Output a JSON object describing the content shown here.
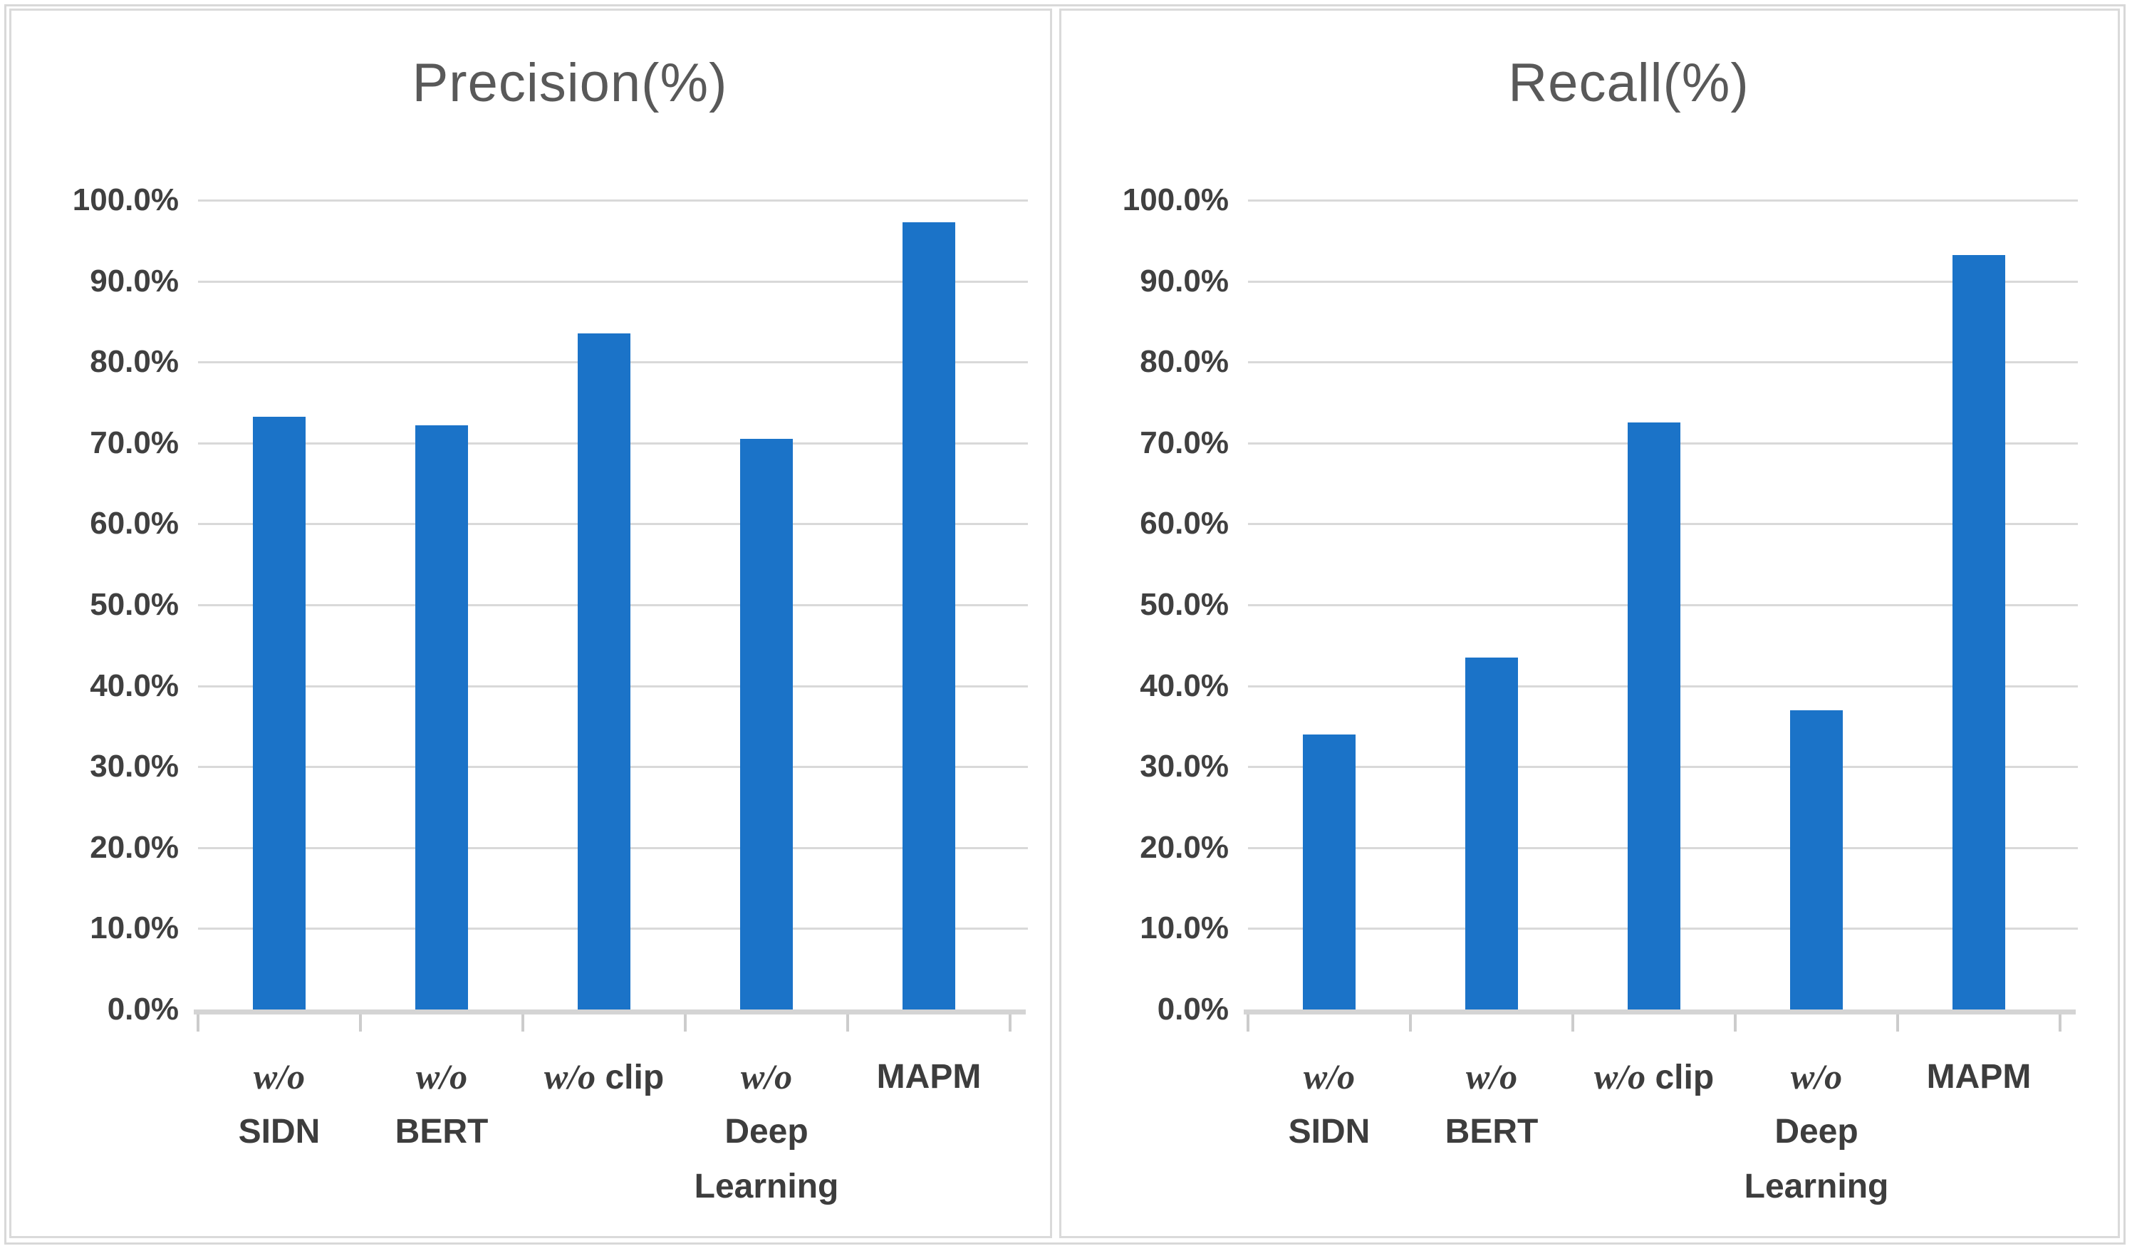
{
  "styles": {
    "bar_color": "#1b73c8",
    "grid_color": "#d9d9d9",
    "axis_color": "#d4d4d4",
    "tick_color": "#cccccc",
    "title_color": "#595959",
    "label_color": "#404040",
    "panel_border": "#dadada",
    "frame_border": "#d8d8d8",
    "background": "#ffffff"
  },
  "axis": {
    "y_tick_labels": [
      "0.0%",
      "10.0%",
      "20.0%",
      "30.0%",
      "40.0%",
      "50.0%",
      "60.0%",
      "70.0%",
      "80.0%",
      "90.0%",
      "100.0%"
    ],
    "y_min": 0,
    "y_max": 100
  },
  "category_label_lines": [
    [
      [
        {
          "text": "w/o",
          "serif_italic": true
        }
      ],
      [
        {
          "text": "SIDN",
          "serif_italic": false
        }
      ]
    ],
    [
      [
        {
          "text": "w/o",
          "serif_italic": true
        }
      ],
      [
        {
          "text": "BERT",
          "serif_italic": false
        }
      ]
    ],
    [
      [
        {
          "text": "w/o",
          "serif_italic": true
        },
        {
          "text": " clip",
          "serif_italic": false
        }
      ]
    ],
    [
      [
        {
          "text": "w/o",
          "serif_italic": true
        }
      ],
      [
        {
          "text": "Deep",
          "serif_italic": false
        }
      ],
      [
        {
          "text": "Learning",
          "serif_italic": false
        }
      ]
    ],
    [
      [
        {
          "text": "MAPM",
          "serif_italic": false
        }
      ]
    ]
  ],
  "chart_data": [
    {
      "type": "bar",
      "title": "Precision(%)",
      "categories": [
        "w/o SIDN",
        "w/o BERT",
        "w/o clip",
        "w/o Deep Learning",
        "MAPM"
      ],
      "values": [
        73.2,
        72.2,
        83.5,
        70.5,
        97.3
      ],
      "xlabel": "",
      "ylabel": "",
      "ylim": [
        0,
        100
      ],
      "y_tick_step": 10,
      "grid": true,
      "legend": false
    },
    {
      "type": "bar",
      "title": "Recall(%)",
      "categories": [
        "w/o SIDN",
        "w/o BERT",
        "w/o clip",
        "w/o Deep Learning",
        "MAPM"
      ],
      "values": [
        34.0,
        43.5,
        72.5,
        37.0,
        93.2
      ],
      "xlabel": "",
      "ylabel": "",
      "ylim": [
        0,
        100
      ],
      "y_tick_step": 10,
      "grid": true,
      "legend": false
    }
  ]
}
